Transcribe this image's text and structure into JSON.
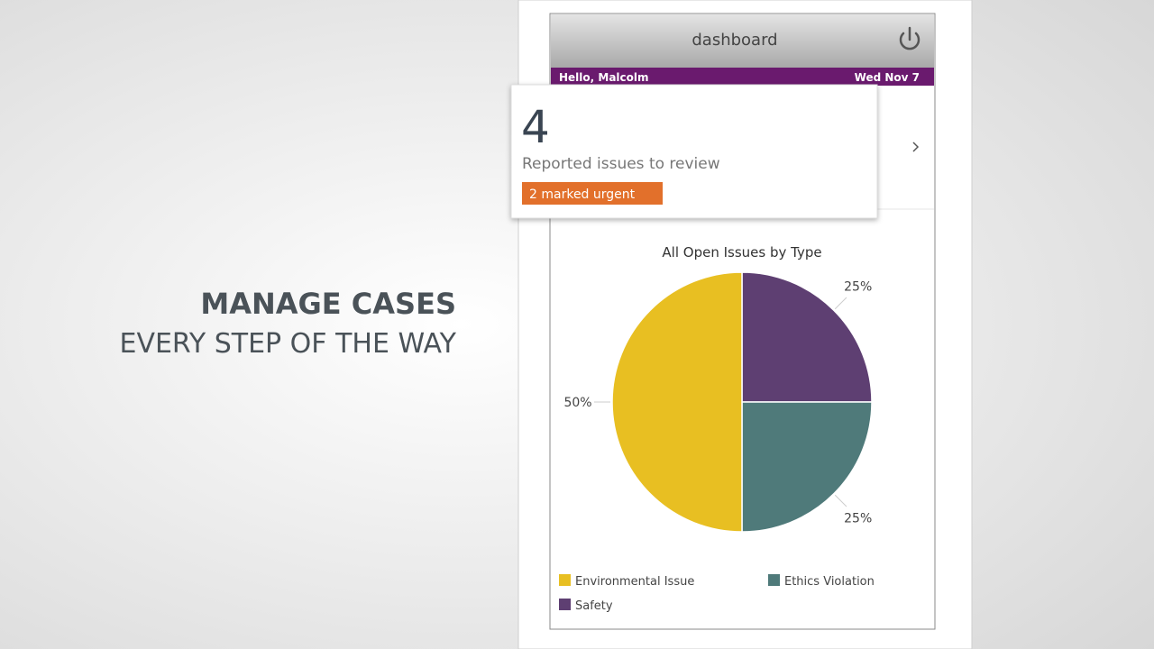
{
  "tagline": {
    "line1": "MANAGE CASES",
    "line2": "EVERY STEP OF THE WAY"
  },
  "app": {
    "header": "dashboard",
    "greeting": "Hello, Malcolm",
    "date": "Wed Nov 7"
  },
  "card": {
    "count": "4",
    "label": "Reported issues to review",
    "badge": "2 marked urgent"
  },
  "chart_data": {
    "type": "pie",
    "title": "All Open Issues by Type",
    "categories": [
      "Environmental Issue",
      "Ethics Violation",
      "Safety"
    ],
    "values": [
      50,
      25,
      25
    ],
    "value_labels": [
      "50%",
      "25%",
      "25%"
    ],
    "colors": [
      "#e8bf22",
      "#4f7a7a",
      "#5e3f72"
    ]
  }
}
